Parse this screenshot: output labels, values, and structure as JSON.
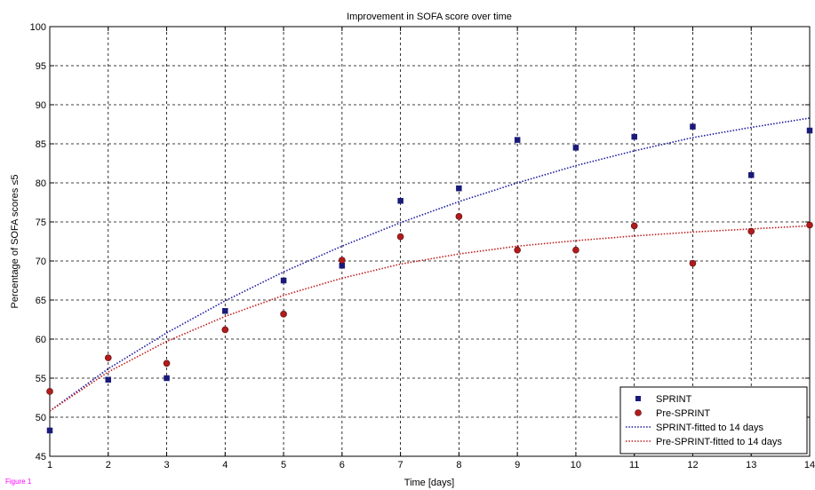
{
  "figure_label": "Figure 1",
  "colors": {
    "sprint": "#1a1a7a",
    "pre_sprint": "#b01c1c",
    "sprint_fit": "#1a1aa0",
    "pre_sprint_fit": "#c02020",
    "grid": "#000000",
    "figure_label": "#ff00ff"
  },
  "chart_data": {
    "type": "scatter",
    "title": "Improvement in SOFA score over time",
    "xlabel": "Time [days]",
    "ylabel": "Percentage of SOFA scores ≤5",
    "xlim": [
      1,
      14
    ],
    "ylim": [
      45,
      100
    ],
    "xticks": [
      1,
      2,
      3,
      4,
      5,
      6,
      7,
      8,
      9,
      10,
      11,
      12,
      13,
      14
    ],
    "yticks": [
      45,
      50,
      55,
      60,
      65,
      70,
      75,
      80,
      85,
      90,
      95,
      100
    ],
    "grid": true,
    "legend_position": "bottom-right",
    "series": [
      {
        "name": "SPRINT",
        "marker": "square",
        "color": "#1a1a7a",
        "x": [
          1,
          2,
          3,
          4,
          5,
          6,
          7,
          8,
          9,
          10,
          11,
          12,
          13,
          14
        ],
        "y": [
          48.3,
          54.8,
          55.0,
          63.6,
          67.5,
          69.4,
          77.7,
          79.3,
          85.5,
          84.5,
          85.9,
          87.2,
          81.0,
          86.7
        ]
      },
      {
        "name": "Pre-SPRINT",
        "marker": "circle",
        "color": "#b01c1c",
        "x": [
          1,
          2,
          3,
          4,
          5,
          6,
          7,
          8,
          9,
          10,
          11,
          12,
          13,
          14
        ],
        "y": [
          53.3,
          57.6,
          56.9,
          61.2,
          63.2,
          70.1,
          73.1,
          75.7,
          71.4,
          71.4,
          74.5,
          69.7,
          73.8,
          74.6
        ]
      },
      {
        "name": "SPRINT-fitted to 14 days",
        "line": "dotted",
        "color": "#1a1aa0",
        "x": [
          1,
          2,
          3,
          4,
          5,
          6,
          7,
          8,
          9,
          10,
          11,
          12,
          13,
          14
        ],
        "y": [
          50.8,
          56.2,
          60.8,
          64.9,
          68.6,
          71.9,
          74.9,
          77.6,
          80.0,
          82.2,
          84.1,
          85.8,
          87.1,
          88.3
        ]
      },
      {
        "name": "Pre-SPRINT-fitted to 14 days",
        "line": "dotted",
        "color": "#c02020",
        "x": [
          1,
          2,
          3,
          4,
          5,
          6,
          7,
          8,
          9,
          10,
          11,
          12,
          13,
          14
        ],
        "y": [
          50.8,
          55.8,
          59.7,
          62.9,
          65.6,
          67.8,
          69.6,
          70.9,
          71.9,
          72.6,
          73.2,
          73.7,
          74.1,
          74.5
        ]
      }
    ]
  }
}
